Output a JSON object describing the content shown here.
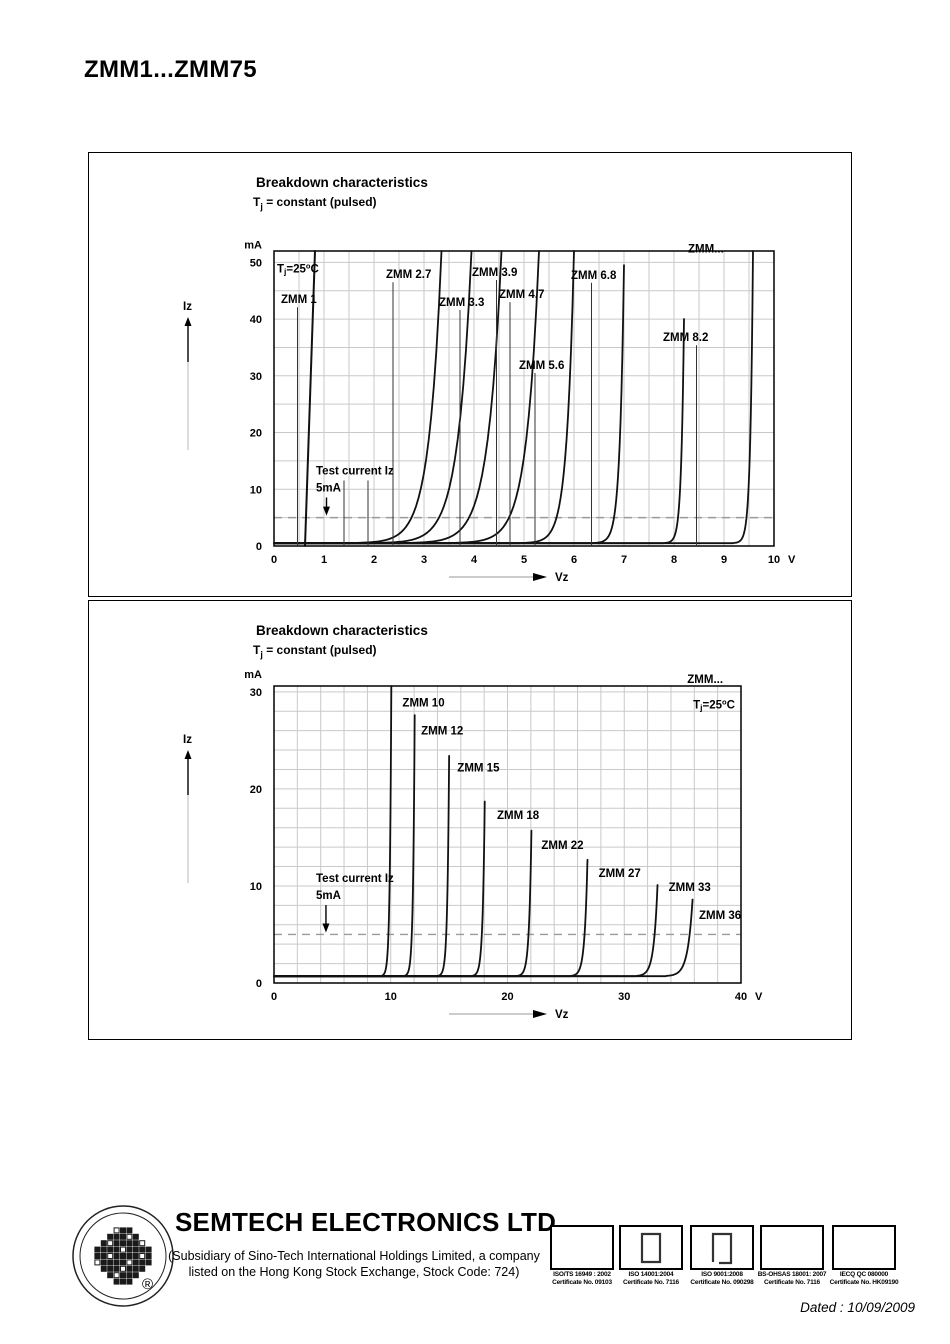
{
  "page": {
    "title": "ZMM1...ZMM75",
    "dated": "Dated : 10/09/2009"
  },
  "chart_data": [
    {
      "type": "line",
      "title": "Breakdown characteristics",
      "subtitle_parts": {
        "p1": "T",
        "sub": "j",
        "p2": " = constant (pulsed)"
      },
      "condition_parts": {
        "p1": "T",
        "sub": "j",
        "p2": "=25",
        "sup": "o",
        "p3": "C"
      },
      "condition_pos": {
        "v": 0.06,
        "i": 48.2
      },
      "overflow_label": "ZMM...",
      "overflow_pos": {
        "v": 8.28,
        "i": 51.7
      },
      "ylabel": "Iz",
      "xlabel": "Vz",
      "y_unit": "mA",
      "x_unit": "V",
      "xlim": [
        0,
        10
      ],
      "ylim": [
        0,
        52
      ],
      "x_ticks": [
        0,
        1,
        2,
        3,
        4,
        5,
        6,
        7,
        8,
        9,
        10
      ],
      "y_ticks": [
        0,
        10,
        20,
        30,
        40,
        50
      ],
      "x_minor_step": 0.5,
      "y_minor_step": 5,
      "leak_mA": 0.5,
      "grid": true,
      "legend_position": "labels-on-curves",
      "test_current": {
        "line1": "Test current Iz",
        "line2": "5mA",
        "value_mA": 5,
        "pos_v": 0.84,
        "pos_i": 12.6,
        "arrow_v": 1.05,
        "leader_vs": [
          1.4,
          1.88
        ]
      },
      "series": [
        {
          "name": "ZMM 1",
          "line": [
            [
              0.62,
              0
            ],
            [
              0.82,
              52
            ]
          ],
          "label_pos": {
            "v": 0.14,
            "i": 42.8
          },
          "leader_v": 0.47
        },
        {
          "name": "ZMM 2.7",
          "v5": 2.75,
          "vtop": 3.35,
          "itop": 52,
          "label_pos": {
            "v": 2.24,
            "i": 47.2
          },
          "leader_v": 2.38
        },
        {
          "name": "ZMM 3.3",
          "v5": 3.3,
          "vtop": 3.95,
          "itop": 52,
          "label_pos": {
            "v": 3.3,
            "i": 42.3
          },
          "leader_v": 3.72
        },
        {
          "name": "ZMM 3.9",
          "v5": 3.9,
          "vtop": 4.55,
          "itop": 52,
          "label_pos": {
            "v": 3.96,
            "i": 47.6
          },
          "leader_v": 4.45
        },
        {
          "name": "ZMM 4.7",
          "v5": 4.7,
          "vtop": 5.3,
          "itop": 52,
          "label_pos": {
            "v": 4.5,
            "i": 43.7
          },
          "leader_v": 4.72
        },
        {
          "name": "ZMM 5.6",
          "v5": 5.65,
          "vtop": 6.0,
          "itop": 52,
          "label_pos": {
            "v": 4.9,
            "i": 31.2
          },
          "leader_v": 5.22
        },
        {
          "name": "ZMM 6.8",
          "v5": 6.8,
          "vtop": 7.0,
          "itop": 49.5,
          "label_pos": {
            "v": 5.94,
            "i": 47.1
          },
          "leader_v": 6.35
        },
        {
          "name": "ZMM 8.2",
          "v5": 8.08,
          "vtop": 8.2,
          "itop": 40,
          "label_pos": {
            "v": 7.78,
            "i": 36.1
          },
          "leader_v": 8.45
        },
        {
          "name": "ZMM...",
          "v5": 9.45,
          "vtop": 9.58,
          "itop": 52,
          "no_label": true
        }
      ]
    },
    {
      "type": "line",
      "title": "Breakdown characteristics",
      "subtitle_parts": {
        "p1": "T",
        "sub": "j",
        "p2": " = constant (pulsed)"
      },
      "condition_parts": {
        "p1": "T",
        "sub": "j",
        "p2": "=25",
        "sup": "o",
        "p3": "C"
      },
      "condition_pos": {
        "v": 35.9,
        "i": 28.3
      },
      "overflow_label": "ZMM...",
      "overflow_pos": {
        "v": 35.4,
        "i": 30.9
      },
      "ylabel": "Iz",
      "xlabel": "Vz",
      "y_unit": "mA",
      "x_unit": "V",
      "xlim": [
        0,
        40
      ],
      "ylim": [
        0,
        30.6
      ],
      "x_ticks": [
        0,
        10,
        20,
        30,
        40
      ],
      "y_ticks": [
        0,
        10,
        20,
        30
      ],
      "x_minor_step": 2,
      "y_minor_step": 2,
      "leak_mA": 0.7,
      "grid": true,
      "legend_position": "labels-on-curves",
      "test_current": {
        "line1": "Test current Iz",
        "line2": "5mA",
        "value_mA": 5,
        "pos_v": 3.6,
        "pos_i": 10.4,
        "arrow_v": 4.45,
        "leader_vs": []
      },
      "series": [
        {
          "name": "ZMM 10",
          "v5": 9.8,
          "vtop": 10.05,
          "itop": 30.6,
          "label_pos": {
            "v": 11.0,
            "i": 28.5
          }
        },
        {
          "name": "ZMM 12",
          "v5": 11.8,
          "vtop": 12.05,
          "itop": 27.6,
          "label_pos": {
            "v": 12.6,
            "i": 25.6
          }
        },
        {
          "name": "ZMM 15",
          "v5": 14.75,
          "vtop": 15.0,
          "itop": 23.4,
          "label_pos": {
            "v": 15.7,
            "i": 21.8
          }
        },
        {
          "name": "ZMM 18",
          "v5": 17.8,
          "vtop": 18.05,
          "itop": 18.7,
          "label_pos": {
            "v": 19.1,
            "i": 16.9
          }
        },
        {
          "name": "ZMM 22",
          "v5": 21.8,
          "vtop": 22.05,
          "itop": 15.7,
          "label_pos": {
            "v": 22.9,
            "i": 13.8
          }
        },
        {
          "name": "ZMM 27",
          "v5": 26.6,
          "vtop": 26.85,
          "itop": 12.7,
          "label_pos": {
            "v": 27.8,
            "i": 10.9
          }
        },
        {
          "name": "ZMM 33",
          "v5": 32.6,
          "vtop": 32.85,
          "itop": 10.1,
          "label_pos": {
            "v": 33.8,
            "i": 9.5
          }
        },
        {
          "name": "ZMM 36",
          "v5": 35.6,
          "vtop": 35.85,
          "itop": 8.6,
          "label_pos": {
            "v": 36.4,
            "i": 6.6
          }
        }
      ]
    }
  ],
  "footer": {
    "company": "SEMTECH ELECTRONICS LTD.",
    "subsidiary_line1": "(Subsidiary of Sino-Tech International Holdings Limited, a company",
    "subsidiary_line2": "listed on the Hong Kong Stock Exchange, Stock Code: 724)",
    "registered_mark": "®",
    "certifications": [
      {
        "line1": "ISO/TS 16949 : 2002",
        "line2": "Certificate No. 09103",
        "glyph": "none"
      },
      {
        "line1": "ISO 14001:2004",
        "line2": "Certificate No. 7116",
        "glyph": "square"
      },
      {
        "line1": "ISO 9001:2008",
        "line2": "Certificate No. 090298",
        "glyph": "square-open"
      },
      {
        "line1": "BS-OHSAS 18001: 2007",
        "line2": "Certificate No. 7116",
        "glyph": "none"
      },
      {
        "line1": "IECQ QC 080000",
        "line2": "Certificate No. HK09190",
        "glyph": "none"
      }
    ]
  }
}
